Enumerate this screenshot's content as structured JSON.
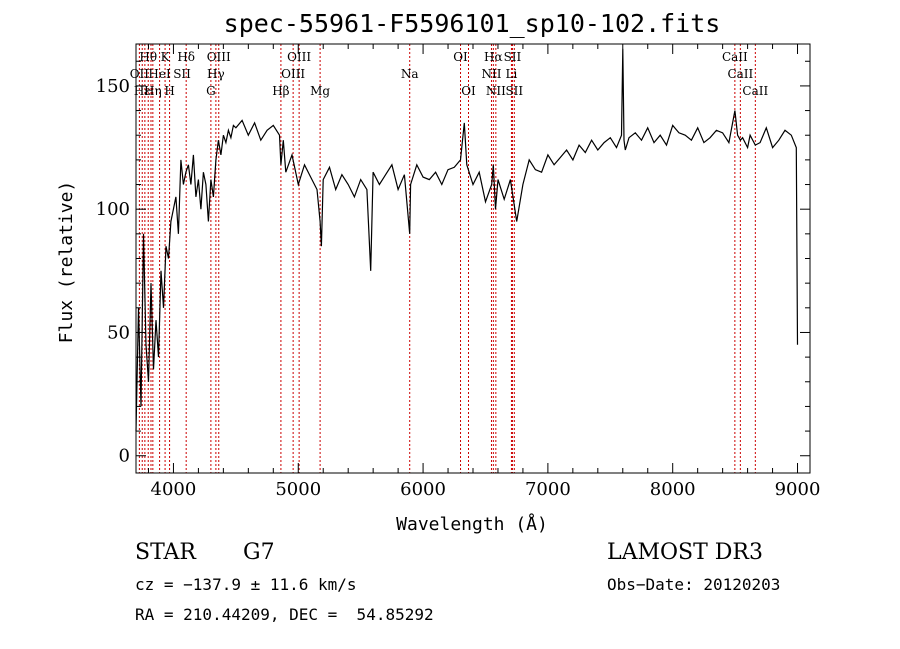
{
  "chart_data": {
    "type": "line",
    "title": "spec-55961-F5596101_sp10-102.fits",
    "xlabel": "Wavelength (Å)",
    "ylabel": "Flux (relative)",
    "xlim": [
      3700,
      9100
    ],
    "ylim": [
      -7,
      167
    ],
    "x_ticks": [
      4000,
      5000,
      6000,
      7000,
      8000,
      9000
    ],
    "y_ticks": [
      0,
      50,
      100,
      150
    ],
    "grid": false,
    "series": [
      {
        "color": "#000000",
        "x": [
          3700,
          3720,
          3740,
          3760,
          3780,
          3800,
          3820,
          3840,
          3860,
          3880,
          3900,
          3920,
          3940,
          3960,
          3980,
          4000,
          4020,
          4040,
          4060,
          4080,
          4100,
          4120,
          4140,
          4160,
          4180,
          4200,
          4220,
          4240,
          4260,
          4280,
          4300,
          4320,
          4340,
          4360,
          4380,
          4400,
          4420,
          4440,
          4460,
          4480,
          4500,
          4550,
          4600,
          4650,
          4700,
          4750,
          4800,
          4850,
          4861,
          4880,
          4900,
          4950,
          5000,
          5050,
          5100,
          5150,
          5175,
          5185,
          5200,
          5250,
          5300,
          5350,
          5400,
          5450,
          5500,
          5550,
          5580,
          5600,
          5650,
          5700,
          5750,
          5800,
          5850,
          5893,
          5900,
          5950,
          6000,
          6050,
          6100,
          6150,
          6200,
          6250,
          6300,
          6330,
          6350,
          6400,
          6450,
          6500,
          6550,
          6563,
          6580,
          6600,
          6650,
          6700,
          6750,
          6800,
          6850,
          6900,
          6950,
          7000,
          7050,
          7100,
          7150,
          7200,
          7250,
          7300,
          7350,
          7400,
          7450,
          7500,
          7550,
          7590,
          7600,
          7610,
          7620,
          7650,
          7700,
          7750,
          7800,
          7850,
          7900,
          7950,
          8000,
          8050,
          8100,
          8150,
          8200,
          8250,
          8300,
          8350,
          8400,
          8450,
          8498,
          8520,
          8542,
          8560,
          8600,
          8620,
          8662,
          8700,
          8750,
          8800,
          8850,
          8900,
          8950,
          8990,
          9000
        ],
        "y": [
          10,
          60,
          20,
          90,
          45,
          30,
          70,
          35,
          55,
          40,
          75,
          60,
          85,
          80,
          95,
          100,
          105,
          90,
          120,
          110,
          115,
          118,
          110,
          122,
          105,
          112,
          100,
          115,
          110,
          95,
          112,
          105,
          120,
          128,
          122,
          130,
          127,
          132,
          129,
          134,
          133,
          136,
          130,
          135,
          128,
          132,
          134,
          130,
          118,
          128,
          115,
          122,
          110,
          118,
          113,
          108,
          95,
          85,
          112,
          117,
          108,
          114,
          110,
          105,
          112,
          108,
          75,
          115,
          110,
          114,
          118,
          108,
          114,
          90,
          110,
          118,
          113,
          112,
          115,
          110,
          116,
          117,
          120,
          135,
          118,
          110,
          115,
          103,
          110,
          118,
          100,
          112,
          104,
          112,
          95,
          110,
          120,
          116,
          115,
          122,
          118,
          121,
          124,
          120,
          126,
          123,
          128,
          124,
          127,
          129,
          125,
          130,
          165,
          128,
          124,
          129,
          131,
          128,
          133,
          127,
          130,
          126,
          134,
          131,
          130,
          128,
          133,
          127,
          129,
          132,
          131,
          127,
          140,
          130,
          128,
          129,
          125,
          130,
          126,
          127,
          133,
          125,
          128,
          132,
          130,
          125,
          45
        ]
      }
    ],
    "reference_lines": {
      "color": "#cc0000",
      "wavelengths": [
        3727,
        3750,
        3771,
        3798,
        3820,
        3835,
        3889,
        3933,
        3969,
        4102,
        4300,
        4340,
        4363,
        4861,
        4959,
        5007,
        5175,
        5893,
        6300,
        6364,
        6548,
        6563,
        6583,
        6708,
        6716,
        6731,
        8498,
        8542,
        8662
      ]
    },
    "line_labels": [
      {
        "text": "Hθ",
        "w": 3798,
        "row": 1
      },
      {
        "text": "K",
        "w": 3933,
        "row": 1
      },
      {
        "text": "Hδ",
        "w": 4102,
        "row": 1
      },
      {
        "text": "OIII",
        "w": 4363,
        "row": 1
      },
      {
        "text": "OIII",
        "w": 5007,
        "row": 1
      },
      {
        "text": "OI",
        "w": 6300,
        "row": 1
      },
      {
        "text": "Hα",
        "w": 6563,
        "row": 1
      },
      {
        "text": "SII",
        "w": 6716,
        "row": 1
      },
      {
        "text": "CaII",
        "w": 8498,
        "row": 1
      },
      {
        "text": "OII",
        "w": 3727,
        "row": 2
      },
      {
        "text": "HeI",
        "w": 3889,
        "row": 2
      },
      {
        "text": "SII",
        "w": 4069,
        "row": 2
      },
      {
        "text": "Hγ",
        "w": 4340,
        "row": 2
      },
      {
        "text": "OIII",
        "w": 4959,
        "row": 2
      },
      {
        "text": "Na",
        "w": 5893,
        "row": 2
      },
      {
        "text": "NII",
        "w": 6548,
        "row": 2
      },
      {
        "text": "Li",
        "w": 6708,
        "row": 2
      },
      {
        "text": "CaII",
        "w": 8542,
        "row": 2
      },
      {
        "text": "Hε",
        "w": 3750,
        "row": 3
      },
      {
        "text": "Hη",
        "w": 3835,
        "row": 3
      },
      {
        "text": "H",
        "w": 3969,
        "row": 3
      },
      {
        "text": "G",
        "w": 4300,
        "row": 3
      },
      {
        "text": "Hβ",
        "w": 4861,
        "row": 3
      },
      {
        "text": "Mg",
        "w": 5175,
        "row": 3
      },
      {
        "text": "OI",
        "w": 6364,
        "row": 3
      },
      {
        "text": "NII",
        "w": 6583,
        "row": 3
      },
      {
        "text": "SII",
        "w": 6731,
        "row": 3
      },
      {
        "text": "CaII",
        "w": 8662,
        "row": 3
      }
    ]
  },
  "info": {
    "object_class": "STAR",
    "subclass": "G7",
    "survey": "LAMOST DR3",
    "cz": "cz = −137.9 ± 11.6 km/s",
    "obs_date": "Obs−Date: 20120203",
    "coords": "RA = 210.44209, DEC =  54.85292"
  }
}
